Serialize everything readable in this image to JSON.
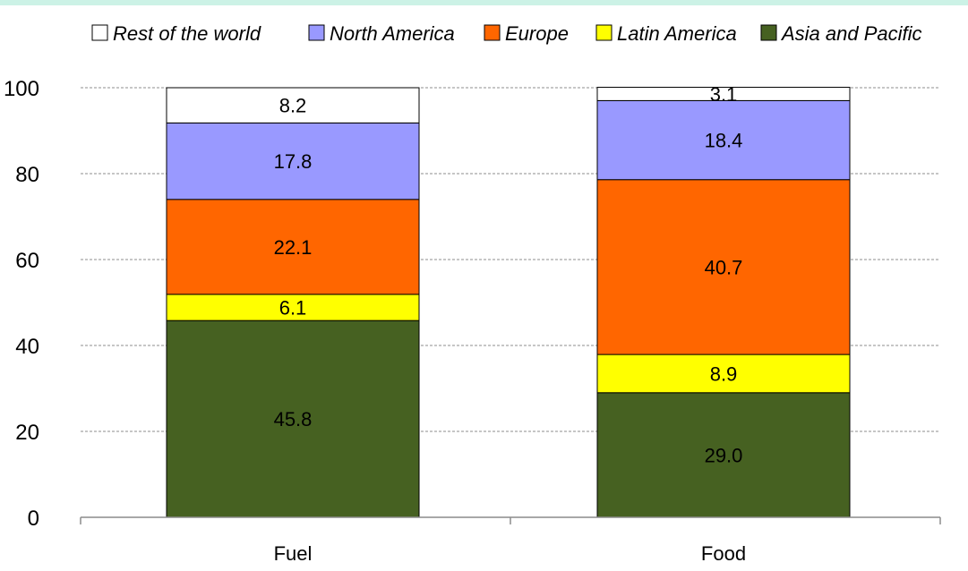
{
  "chart_data": {
    "type": "bar",
    "stacked": true,
    "title": "",
    "xlabel": "",
    "ylabel": "",
    "categories": [
      "Fuel",
      "Food"
    ],
    "ylim": [
      0,
      100
    ],
    "yticks": [
      "0",
      "20",
      "40",
      "60",
      "80",
      "100"
    ],
    "grid": true,
    "legend_position": "top",
    "legend_order": [
      "Rest of the world",
      "North America",
      "Europe",
      "Latin America",
      "Asia and Pacific"
    ],
    "series": [
      {
        "name": "Asia and Pacific",
        "color": "#466121",
        "values": [
          45.8,
          29.0
        ],
        "labels": [
          "45.8",
          "29.0"
        ]
      },
      {
        "name": "Latin America",
        "color": "#ffff00",
        "values": [
          6.1,
          8.9
        ],
        "labels": [
          "6.1",
          "8.9"
        ]
      },
      {
        "name": "Europe",
        "color": "#ff6600",
        "values": [
          22.1,
          40.7
        ],
        "labels": [
          "22.1",
          "40.7"
        ]
      },
      {
        "name": "North America",
        "color": "#9999ff",
        "values": [
          17.8,
          18.4
        ],
        "labels": [
          "17.8",
          "18.4"
        ]
      },
      {
        "name": "Rest of the world",
        "color": "#ffffff",
        "values": [
          8.2,
          3.1
        ],
        "labels": [
          "8.2",
          "3.1"
        ]
      }
    ]
  },
  "colors": {
    "top_band": "#ccf2e6"
  }
}
